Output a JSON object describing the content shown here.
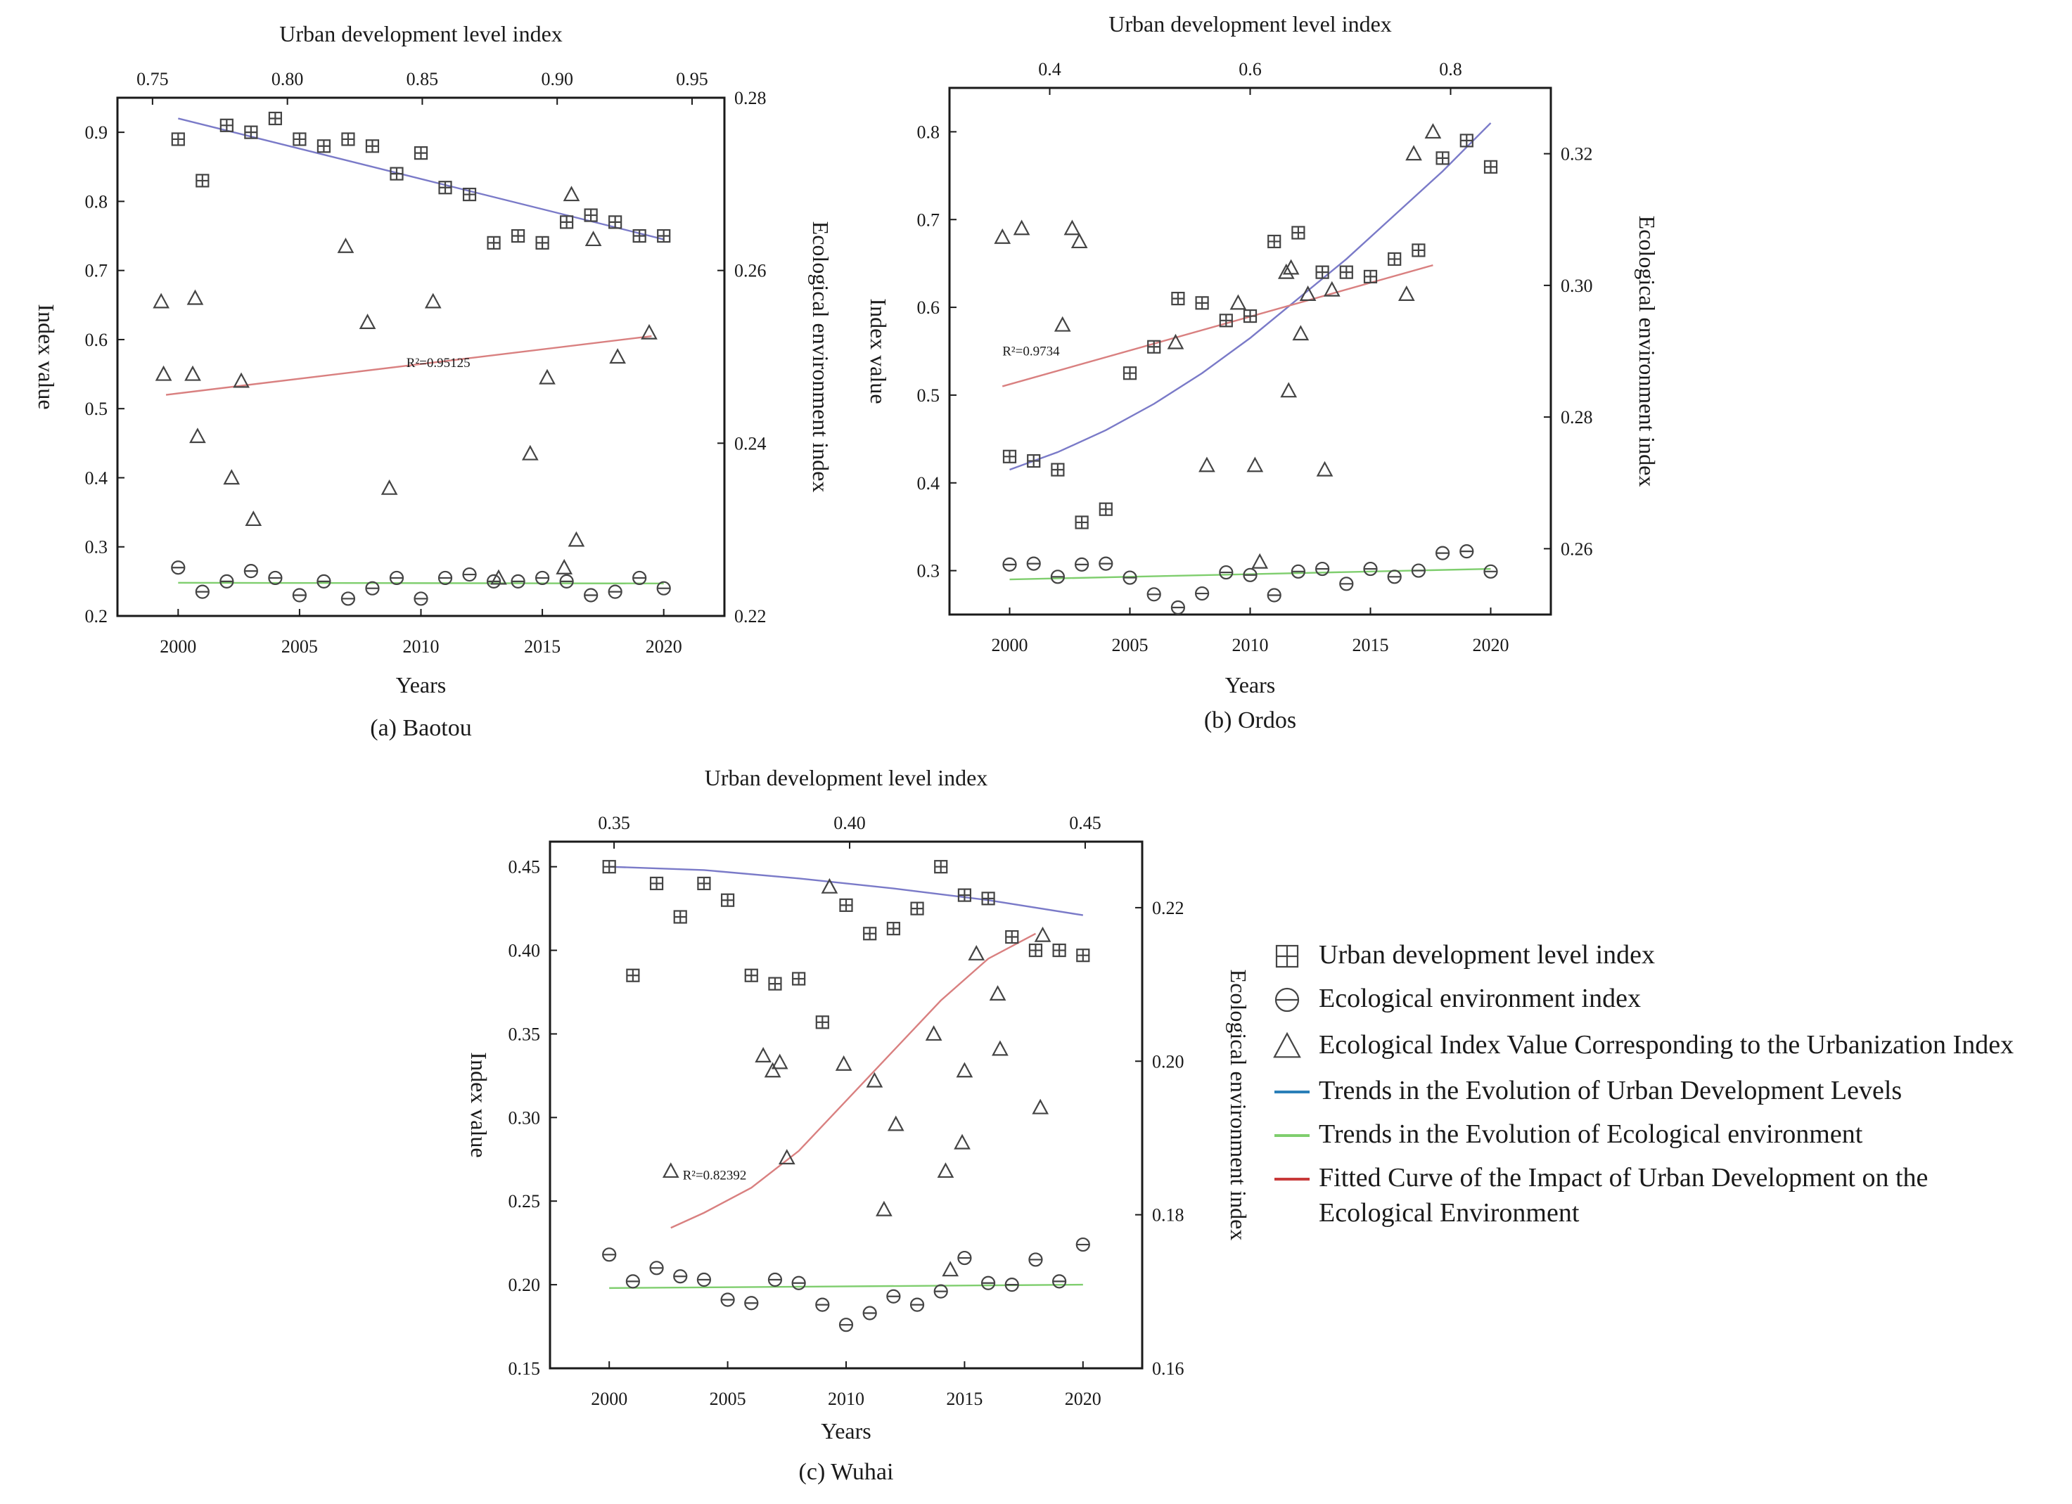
{
  "chart_data": [
    {
      "type": "scatter",
      "caption": "(a) Baotou",
      "xlabel": "Years",
      "ylabel": "Index value",
      "y2label": "Ecological environment index",
      "x2label": "Urban development level index",
      "xlim": [
        1997.5,
        2022.5
      ],
      "xticks": [
        "2000",
        "2005",
        "2010",
        "2015",
        "2020"
      ],
      "ylim": [
        0.2,
        0.95
      ],
      "yticks": [
        "0.2",
        "0.3",
        "0.4",
        "0.5",
        "0.6",
        "0.7",
        "0.8",
        "0.9"
      ],
      "y2lim": [
        0.22,
        0.28
      ],
      "y2ticks": [
        "0.22",
        "0.24",
        "0.26",
        "0.28"
      ],
      "x2lim": [
        0.737,
        0.962
      ],
      "x2ticks": [
        "0.75",
        "0.80",
        "0.85",
        "0.90",
        "0.95"
      ],
      "r2_label": "R²=0.95125",
      "r2_at": [
        2009.4,
        0.56
      ],
      "series": [
        {
          "name": "Urban development level index",
          "marker": "square",
          "x": [
            2000,
            2001,
            2002,
            2003,
            2004,
            2005,
            2006,
            2007,
            2008,
            2009,
            2010,
            2011,
            2012,
            2013,
            2014,
            2015,
            2016,
            2017,
            2018,
            2019,
            2020
          ],
          "y": [
            0.89,
            0.83,
            0.91,
            0.9,
            0.92,
            0.89,
            0.88,
            0.89,
            0.88,
            0.84,
            0.87,
            0.82,
            0.81,
            0.74,
            0.75,
            0.74,
            0.77,
            0.78,
            0.77,
            0.75,
            0.75
          ]
        },
        {
          "name": "Ecological environment index",
          "marker": "circle",
          "x": [
            2000,
            2001,
            2002,
            2003,
            2004,
            2005,
            2006,
            2007,
            2008,
            2009,
            2010,
            2011,
            2012,
            2013,
            2014,
            2015,
            2016,
            2017,
            2018,
            2019,
            2020
          ],
          "y": [
            0.27,
            0.235,
            0.25,
            0.265,
            0.255,
            0.23,
            0.25,
            0.225,
            0.24,
            0.255,
            0.225,
            0.255,
            0.26,
            0.25,
            0.25,
            0.255,
            0.25,
            0.23,
            0.235,
            0.255,
            0.24
          ]
        },
        {
          "name": "Ecological Index Value Corresponding to the Urbanization Index",
          "marker": "triangle",
          "x": [
            1999.3,
            1999.4,
            2000.6,
            2000.7,
            2000.8,
            2002.2,
            2002.6,
            2003.1,
            2006.9,
            2007.8,
            2008.7,
            2010.5,
            2013.2,
            2014.5,
            2015.2,
            2015.9,
            2016.2,
            2016.4,
            2017.1,
            2018.1,
            2019.4
          ],
          "y": [
            0.655,
            0.55,
            0.55,
            0.66,
            0.46,
            0.4,
            0.54,
            0.34,
            0.735,
            0.625,
            0.385,
            0.655,
            0.255,
            0.435,
            0.545,
            0.27,
            0.81,
            0.31,
            0.745,
            0.575,
            0.61
          ]
        },
        {
          "name": "Trends in the Evolution of Urban Development Levels",
          "line": true,
          "color": "#7a7ac8",
          "x": [
            2000,
            2020
          ],
          "y": [
            0.92,
            0.745
          ]
        },
        {
          "name": "Trends in the Evolution of Ecological environment",
          "line": true,
          "color": "#7fce6e",
          "x": [
            2000,
            2020
          ],
          "y": [
            0.248,
            0.247
          ]
        },
        {
          "name": "Fitted Curve of the Impact of Urban Development on the Ecological Environment",
          "line": true,
          "color": "#d98080",
          "x": [
            1999.5,
            2019.5
          ],
          "y": [
            0.52,
            0.605
          ]
        }
      ]
    },
    {
      "type": "scatter",
      "caption": "(b) Ordos",
      "xlabel": "Years",
      "ylabel": "Index value",
      "y2label": "Ecological environment index",
      "x2label": "Urban development level index",
      "xlim": [
        1997.5,
        2022.5
      ],
      "xticks": [
        "2000",
        "2005",
        "2010",
        "2015",
        "2020"
      ],
      "ylim": [
        0.25,
        0.85
      ],
      "yticks": [
        "0.3",
        "0.4",
        "0.5",
        "0.6",
        "0.7",
        "0.8"
      ],
      "y2lim": [
        0.25,
        0.33
      ],
      "y2ticks": [
        "0.26",
        "0.28",
        "0.30",
        "0.32"
      ],
      "x2lim": [
        0.3,
        0.9
      ],
      "x2ticks": [
        "0.4",
        "0.6",
        "0.8"
      ],
      "r2_label": "R²=0.9734",
      "r2_at": [
        1999.7,
        0.545
      ],
      "series": [
        {
          "name": "Urban development level index",
          "marker": "square",
          "x": [
            2000,
            2001,
            2002,
            2003,
            2004,
            2005,
            2006,
            2007,
            2008,
            2009,
            2010,
            2011,
            2012,
            2013,
            2014,
            2015,
            2016,
            2017,
            2018,
            2019,
            2020
          ],
          "y": [
            0.43,
            0.425,
            0.415,
            0.355,
            0.37,
            0.525,
            0.555,
            0.61,
            0.605,
            0.585,
            0.59,
            0.675,
            0.685,
            0.64,
            0.64,
            0.635,
            0.655,
            0.665,
            0.77,
            0.79,
            0.76
          ]
        },
        {
          "name": "Ecological environment index",
          "marker": "circle",
          "x": [
            2000,
            2001,
            2002,
            2003,
            2004,
            2005,
            2006,
            2007,
            2008,
            2009,
            2010,
            2011,
            2012,
            2013,
            2014,
            2015,
            2016,
            2017,
            2018,
            2019,
            2020
          ],
          "y": [
            0.307,
            0.308,
            0.293,
            0.307,
            0.308,
            0.292,
            0.273,
            0.258,
            0.274,
            0.298,
            0.295,
            0.272,
            0.299,
            0.302,
            0.285,
            0.302,
            0.293,
            0.3,
            0.32,
            0.322,
            0.299
          ]
        },
        {
          "name": "Ecological Index Value Corresponding to the Urbanization Index",
          "marker": "triangle",
          "x": [
            1999.7,
            2000.5,
            2002.2,
            2002.6,
            2002.9,
            2006.9,
            2008.2,
            2009.5,
            2010.2,
            2010.4,
            2011.5,
            2011.6,
            2011.7,
            2012.1,
            2012.4,
            2013.1,
            2013.4,
            2016.5,
            2016.8,
            2017.6
          ],
          "y": [
            0.68,
            0.69,
            0.58,
            0.69,
            0.675,
            0.56,
            0.42,
            0.605,
            0.42,
            0.31,
            0.64,
            0.505,
            0.645,
            0.57,
            0.615,
            0.415,
            0.62,
            0.615,
            0.775,
            0.8
          ]
        },
        {
          "name": "Trends in the Evolution of Urban Development Levels",
          "line": true,
          "color": "#7a7ac8",
          "x": [
            2000,
            2002,
            2004,
            2006,
            2008,
            2010,
            2012,
            2014,
            2016,
            2018,
            2020
          ],
          "y": [
            0.415,
            0.435,
            0.46,
            0.49,
            0.525,
            0.565,
            0.61,
            0.655,
            0.705,
            0.755,
            0.81
          ]
        },
        {
          "name": "Trends in the Evolution of Ecological environment",
          "line": true,
          "color": "#7fce6e",
          "x": [
            2000,
            2020
          ],
          "y": [
            0.29,
            0.302
          ]
        },
        {
          "name": "Fitted Curve of the Impact of Urban Development on the Ecological Environment",
          "line": true,
          "color": "#d98080",
          "x": [
            1999.7,
            2017.6
          ],
          "y": [
            0.51,
            0.648
          ]
        }
      ]
    },
    {
      "type": "scatter",
      "caption": "(c) Wuhai",
      "xlabel": "Years",
      "ylabel": "Index value",
      "y2label": "Ecological environment index",
      "x2label": "Urban development level index",
      "xlim": [
        1997.5,
        2022.5
      ],
      "xticks": [
        "2000",
        "2005",
        "2010",
        "2015",
        "2020"
      ],
      "ylim": [
        0.15,
        0.465
      ],
      "yticks": [
        "0.15",
        "0.20",
        "0.25",
        "0.30",
        "0.35",
        "0.40",
        "0.45"
      ],
      "y2lim": [
        0.16,
        0.2286
      ],
      "y2ticks": [
        "0.16",
        "0.18",
        "0.20",
        "0.22"
      ],
      "x2lim": [
        0.3364,
        0.4621
      ],
      "x2ticks": [
        "0.35",
        "0.40",
        "0.45"
      ],
      "r2_label": "R²=0.82392",
      "r2_at": [
        2003.1,
        0.263
      ],
      "series": [
        {
          "name": "Urban development level index",
          "marker": "square",
          "x": [
            2000,
            2001,
            2002,
            2003,
            2004,
            2005,
            2006,
            2007,
            2008,
            2009,
            2010,
            2011,
            2012,
            2013,
            2014,
            2015,
            2016,
            2017,
            2018,
            2019,
            2020
          ],
          "y": [
            0.45,
            0.385,
            0.44,
            0.42,
            0.44,
            0.43,
            0.385,
            0.38,
            0.383,
            0.357,
            0.427,
            0.41,
            0.413,
            0.425,
            0.45,
            0.433,
            0.431,
            0.408,
            0.4,
            0.4,
            0.397
          ]
        },
        {
          "name": "Ecological environment index",
          "marker": "circle",
          "x": [
            2000,
            2001,
            2002,
            2003,
            2004,
            2005,
            2006,
            2007,
            2008,
            2009,
            2010,
            2011,
            2012,
            2013,
            2014,
            2015,
            2016,
            2017,
            2018,
            2019,
            2020
          ],
          "y": [
            0.218,
            0.202,
            0.21,
            0.205,
            0.203,
            0.191,
            0.189,
            0.203,
            0.201,
            0.188,
            0.176,
            0.183,
            0.193,
            0.188,
            0.196,
            0.216,
            0.201,
            0.2,
            0.215,
            0.202,
            0.224
          ]
        },
        {
          "name": "Ecological Index Value Corresponding to the Urbanization Index",
          "marker": "triangle",
          "x": [
            2002.6,
            2006.5,
            2006.9,
            2007.2,
            2007.5,
            2009.3,
            2009.9,
            2011.2,
            2011.6,
            2012.1,
            2013.7,
            2014.2,
            2014.4,
            2014.9,
            2015,
            2015.5,
            2016.4,
            2016.5,
            2018.2,
            2018.3
          ],
          "y": [
            0.268,
            0.337,
            0.328,
            0.333,
            0.276,
            0.438,
            0.332,
            0.322,
            0.245,
            0.296,
            0.35,
            0.268,
            0.209,
            0.285,
            0.328,
            0.398,
            0.374,
            0.341,
            0.306,
            0.409
          ]
        },
        {
          "name": "Trends in the Evolution of Urban Development Levels",
          "line": true,
          "color": "#7a7ac8",
          "x": [
            2000,
            2004,
            2008,
            2012,
            2016,
            2020
          ],
          "y": [
            0.45,
            0.448,
            0.443,
            0.437,
            0.43,
            0.421
          ]
        },
        {
          "name": "Trends in the Evolution of Ecological environment",
          "line": true,
          "color": "#7fce6e",
          "x": [
            2000,
            2020
          ],
          "y": [
            0.198,
            0.2
          ]
        },
        {
          "name": "Fitted Curve of the Impact of Urban Development on the Ecological Environment",
          "line": true,
          "color": "#d98080",
          "x": [
            2002.6,
            2004,
            2006,
            2008,
            2010,
            2012,
            2014,
            2016,
            2018
          ],
          "y": [
            0.234,
            0.243,
            0.258,
            0.28,
            0.31,
            0.34,
            0.37,
            0.395,
            0.41
          ]
        }
      ]
    }
  ],
  "legend": {
    "items": [
      {
        "label": "Urban development level index",
        "symbol": "square"
      },
      {
        "label": "Ecological environment index",
        "symbol": "circle"
      },
      {
        "label": "Ecological Index Value Corresponding to the Urbanization Index",
        "symbol": "triangle"
      },
      {
        "label": "Trends in the Evolution of Urban Development Levels",
        "symbol": "line",
        "color": "#2a7fb8"
      },
      {
        "label": "Trends in the Evolution of Ecological environment",
        "symbol": "line",
        "color": "#7fce6e"
      },
      {
        "label": "Fitted Curve of the Impact of Urban Development on the Ecological Environment",
        "symbol": "line",
        "color": "#c83a3a"
      }
    ]
  }
}
